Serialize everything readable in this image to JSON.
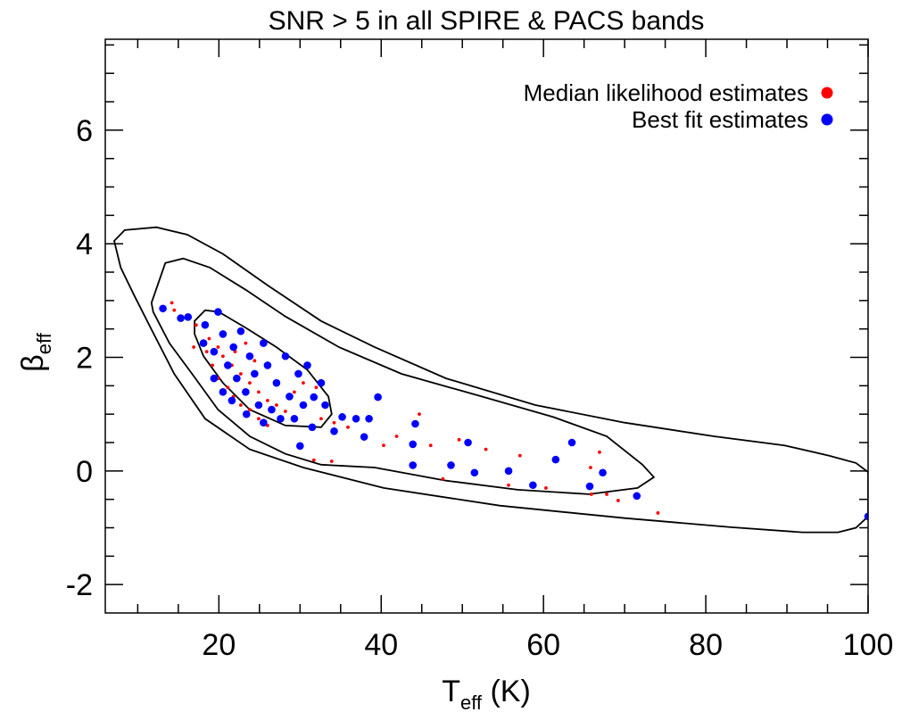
{
  "chart_data": {
    "type": "scatter",
    "title": "SNR > 5 in all SPIRE & PACS bands",
    "xlabel": {
      "main": "T",
      "sub": "eff",
      "rest": " (K)"
    },
    "ylabel": {
      "main": "β",
      "sub": "eff"
    },
    "xlim": [
      6,
      100
    ],
    "ylim": [
      -2.5,
      7.6
    ],
    "xticks": [
      20,
      40,
      60,
      80,
      100
    ],
    "xminor_ticks": [
      10,
      15,
      25,
      30,
      35,
      45,
      50,
      55,
      65,
      70,
      75,
      85,
      90,
      95
    ],
    "yticks": [
      -2,
      0,
      2,
      4,
      6
    ],
    "yminor_ticks": [
      -1.5,
      -1,
      -0.5,
      0.5,
      1,
      1.5,
      2.5,
      3,
      3.5,
      4.5,
      5,
      5.5,
      6.5,
      7,
      7.5
    ],
    "legend": "upper-right",
    "series": [
      {
        "name": "Median likelihood estimates",
        "color": "#ff0000",
        "x": [
          14.2,
          14.5,
          17.2,
          16.9,
          18.5,
          19.2,
          19.9,
          21.1,
          21.8,
          22.7,
          23.8,
          24.9,
          26,
          20.5,
          21.6,
          22.7,
          23.8,
          24.9,
          26,
          27.1,
          28.2,
          18.8,
          19.9,
          22,
          23.3,
          24.4,
          29.3,
          30.4,
          32,
          32.6,
          34.2,
          35.9,
          38.1,
          40.3,
          41.9,
          44.7,
          46.1,
          47.6,
          49.6,
          52.9,
          55.7,
          57.1,
          60.3,
          65.8,
          66.9,
          65.9,
          67.8,
          69.2,
          74.1,
          33.9,
          31.7
        ],
        "values": [
          2.96,
          2.83,
          2.57,
          2.18,
          2.1,
          1.86,
          1.63,
          1.47,
          1.31,
          1.16,
          1.08,
          0.92,
          0.8,
          2.02,
          1.86,
          1.71,
          1.55,
          1.39,
          1.24,
          1.16,
          1.05,
          2.33,
          2.18,
          2.1,
          2.25,
          1.94,
          1.39,
          1.55,
          1.47,
          0.92,
          0.85,
          0.77,
          0.61,
          0.45,
          0.61,
          1,
          0.45,
          -0.14,
          0.55,
          0.38,
          -0.25,
          0.27,
          -0.3,
          0.06,
          0.33,
          -0.41,
          -0.41,
          -0.52,
          -0.74,
          0.17,
          0.19
        ]
      },
      {
        "name": "Best fit estimates",
        "color": "#0000ff",
        "x": [
          13.1,
          16.2,
          15.3,
          19.9,
          18.3,
          18.1,
          19.4,
          20.5,
          21.8,
          22.7,
          23.8,
          21.1,
          22.2,
          23.3,
          24.4,
          25.5,
          26,
          27.1,
          28.2,
          24.9,
          26.5,
          28.7,
          29.8,
          30.9,
          27.6,
          29.3,
          30.4,
          32.6,
          33.1,
          20.5,
          19.4,
          21.6,
          25.5,
          23.4,
          31.5,
          100,
          71.5,
          67.3,
          65.7,
          63.5,
          61.5,
          58.7,
          55.7,
          51.5,
          50.7,
          48.6,
          43.9,
          43.9,
          44.2,
          39.6,
          38.5,
          37.9,
          36.9,
          35.2,
          34.2,
          30,
          31.7
        ],
        "values": [
          2.86,
          2.71,
          2.69,
          2.8,
          2.57,
          2.25,
          2.1,
          2.41,
          2.18,
          2.46,
          2.02,
          1.86,
          1.63,
          1.39,
          1.71,
          2.25,
          1.86,
          1.55,
          2.02,
          1.16,
          1.08,
          1.31,
          1.71,
          1.86,
          0.92,
          0.92,
          1.16,
          1.55,
          1.16,
          1.39,
          1.63,
          1.24,
          0.85,
          1,
          0.77,
          -0.8,
          -0.44,
          -0.03,
          -0.27,
          0.5,
          0.2,
          -0.25,
          0,
          -0.03,
          0.5,
          0.1,
          0.1,
          0.47,
          0.83,
          1.3,
          0.92,
          0.6,
          0.92,
          0.95,
          0.7,
          0.44,
          1.3
        ]
      }
    ],
    "contours": [
      {
        "x": [
          7.1,
          8.4,
          12.3,
          16.1,
          20.5,
          26,
          32.6,
          39.2,
          48,
          59,
          70,
          81,
          89.7,
          95.2,
          98.5,
          100,
          100,
          98.5,
          96.3,
          91.9,
          83.1,
          70,
          54.6,
          40.3,
          30.4,
          23.8,
          18.3,
          14.5,
          11.7,
          9.5,
          7.9
        ],
        "y": [
          4.05,
          4.24,
          4.29,
          4.16,
          3.82,
          3.27,
          2.64,
          2.18,
          1.63,
          1.16,
          0.85,
          0.61,
          0.45,
          0.27,
          0.14,
          -0.02,
          -0.8,
          -1,
          -1.08,
          -1.08,
          -0.99,
          -0.83,
          -0.61,
          -0.3,
          0.06,
          0.38,
          0.92,
          1.71,
          2.49,
          3.11,
          3.58
        ]
      },
      {
        "x": [
          11.7,
          13.4,
          15.6,
          18.9,
          23.3,
          28.2,
          34.8,
          42.5,
          52.4,
          61.2,
          67.8,
          72.2,
          73.6,
          71.6,
          65.6,
          56.8,
          48,
          39.2,
          32.6,
          28.2,
          23.8,
          19.9,
          16.7,
          13.9,
          11.9
        ],
        "y": [
          2.96,
          3.66,
          3.74,
          3.58,
          3.19,
          2.72,
          2.18,
          1.71,
          1.31,
          0.95,
          0.61,
          0.11,
          -0.11,
          -0.3,
          -0.41,
          -0.33,
          -0.17,
          0.06,
          0.11,
          0.3,
          0.61,
          1.08,
          1.71,
          2.25,
          2.8
        ]
      },
      {
        "x": [
          17,
          18.3,
          20,
          23.3,
          27.1,
          30.9,
          33.5,
          33.9,
          32.6,
          28.2,
          23.8,
          20.5,
          18.1,
          17
        ],
        "y": [
          2.64,
          2.83,
          2.8,
          2.52,
          2.18,
          1.78,
          1.31,
          1,
          0.77,
          0.8,
          1.08,
          1.55,
          2.02,
          2.41
        ]
      }
    ]
  }
}
